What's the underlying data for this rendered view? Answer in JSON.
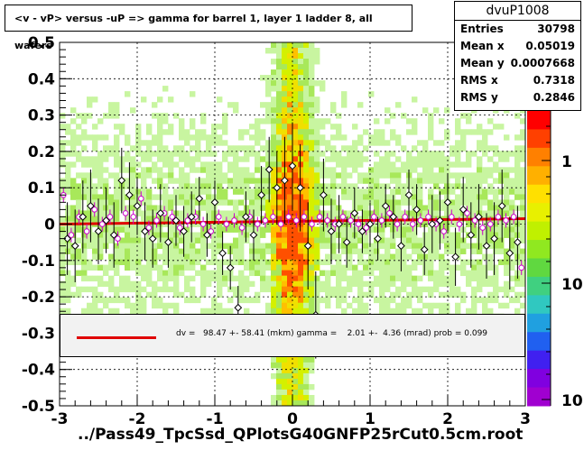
{
  "title": "<v - vP>       versus  -uP =>  gamma for barrel 1, layer 1 ladder 8, all wafers",
  "stats": {
    "name": "dvuP1008",
    "rows": [
      {
        "label": "Entries",
        "value": "30798"
      },
      {
        "label": "Mean x",
        "value": "0.05019"
      },
      {
        "label": "Mean y",
        "value": "0.0007668"
      },
      {
        "label": "RMS x",
        "value": "0.7318"
      },
      {
        "label": "RMS y",
        "value": "0.2846"
      }
    ]
  },
  "fit_text": "dv =   98.47 +- 58.41 (mkm) gamma =    2.01 +-  4.36 (mrad) prob = 0.099",
  "xlabel": "../Pass49_TpcSsd_QPlotsG40GNFP25rCut0.5cm.root",
  "colors": {
    "fit_line": "#e00000",
    "profile_black": "#000000",
    "profile_magenta": "#cc00cc"
  },
  "chart_data": {
    "type": "heatmap",
    "xlim": [
      -3,
      3
    ],
    "ylim": [
      -0.5,
      0.5
    ],
    "x_ticks": [
      "-3",
      "-2",
      "-1",
      "0",
      "1",
      "2",
      "3"
    ],
    "y_ticks": [
      "-0.5",
      "-0.4",
      "-0.3",
      "-0.2",
      "-0.1",
      "0",
      "0.1",
      "0.2",
      "0.3",
      "0.4",
      "0.5"
    ],
    "z_scale": "log",
    "z_ticks": [
      "1",
      "10",
      "10"
    ],
    "grid": true,
    "fit_line": {
      "x": [
        -3,
        3
      ],
      "y": [
        0.0,
        0.015
      ]
    },
    "profile_black": {
      "x": [
        -2.9,
        -2.8,
        -2.7,
        -2.6,
        -2.5,
        -2.4,
        -2.3,
        -2.2,
        -2.1,
        -2.0,
        -1.9,
        -1.8,
        -1.7,
        -1.6,
        -1.5,
        -1.4,
        -1.3,
        -1.2,
        -1.1,
        -1.0,
        -0.9,
        -0.8,
        -0.7,
        -0.6,
        -0.5,
        -0.4,
        -0.3,
        -0.2,
        -0.1,
        0.0,
        0.1,
        0.2,
        0.3,
        0.4,
        0.5,
        0.6,
        0.7,
        0.8,
        0.9,
        1.0,
        1.1,
        1.2,
        1.3,
        1.4,
        1.5,
        1.6,
        1.7,
        1.8,
        1.9,
        2.0,
        2.1,
        2.2,
        2.3,
        2.4,
        2.5,
        2.6,
        2.7,
        2.8,
        2.9
      ],
      "y": [
        -0.04,
        -0.06,
        0.02,
        0.05,
        -0.02,
        0.01,
        -0.03,
        0.12,
        0.08,
        0.05,
        -0.02,
        -0.04,
        0.03,
        -0.05,
        0.01,
        -0.02,
        0.02,
        0.07,
        -0.03,
        0.06,
        -0.08,
        -0.12,
        -0.23,
        0.02,
        -0.03,
        0.08,
        0.15,
        0.1,
        0.12,
        0.16,
        0.1,
        -0.06,
        -0.25,
        0.08,
        -0.02,
        0.0,
        -0.05,
        0.03,
        -0.02,
        0.0,
        -0.04,
        0.05,
        0.02,
        -0.06,
        0.08,
        0.04,
        -0.07,
        0.0,
        0.01,
        0.06,
        -0.09,
        0.04,
        -0.03,
        0.02,
        -0.06,
        -0.04,
        0.05,
        -0.08,
        -0.05
      ],
      "err": [
        0.1,
        0.1,
        0.1,
        0.1,
        0.09,
        0.09,
        0.09,
        0.09,
        0.09,
        0.08,
        0.08,
        0.08,
        0.08,
        0.07,
        0.07,
        0.07,
        0.07,
        0.06,
        0.06,
        0.06,
        0.06,
        0.06,
        0.06,
        0.07,
        0.07,
        0.08,
        0.09,
        0.1,
        0.12,
        0.12,
        0.12,
        0.12,
        0.12,
        0.1,
        0.09,
        0.08,
        0.07,
        0.07,
        0.06,
        0.06,
        0.06,
        0.06,
        0.06,
        0.07,
        0.07,
        0.07,
        0.07,
        0.08,
        0.08,
        0.08,
        0.08,
        0.09,
        0.09,
        0.09,
        0.09,
        0.1,
        0.1,
        0.1,
        0.1
      ]
    },
    "profile_magenta": {
      "x": [
        -2.95,
        -2.85,
        -2.75,
        -2.65,
        -2.55,
        -2.45,
        -2.35,
        -2.25,
        -2.15,
        -2.05,
        -1.95,
        -1.85,
        -1.75,
        -1.65,
        -1.55,
        -1.45,
        -1.35,
        -1.25,
        -1.15,
        -1.05,
        -0.95,
        -0.85,
        -0.75,
        -0.65,
        -0.55,
        -0.45,
        -0.35,
        -0.25,
        -0.15,
        -0.05,
        0.05,
        0.15,
        0.25,
        0.35,
        0.45,
        0.55,
        0.65,
        0.75,
        0.85,
        0.95,
        1.05,
        1.15,
        1.25,
        1.35,
        1.45,
        1.55,
        1.65,
        1.75,
        1.85,
        1.95,
        2.05,
        2.15,
        2.25,
        2.35,
        2.45,
        2.55,
        2.65,
        2.75,
        2.85,
        2.95
      ],
      "y": [
        0.08,
        -0.03,
        0.02,
        -0.02,
        0.04,
        0.0,
        0.02,
        -0.04,
        0.03,
        0.02,
        0.07,
        -0.01,
        0.01,
        0.03,
        0.02,
        -0.01,
        0.01,
        0.02,
        0.0,
        -0.02,
        0.02,
        0.0,
        0.01,
        -0.01,
        0.02,
        0.0,
        0.01,
        0.02,
        0.0,
        0.02,
        0.01,
        0.02,
        0.0,
        0.02,
        0.01,
        0.0,
        0.02,
        0.01,
        0.0,
        -0.01,
        0.02,
        0.01,
        0.03,
        0.0,
        0.02,
        0.0,
        0.01,
        0.02,
        0.0,
        -0.02,
        0.02,
        0.0,
        0.03,
        0.01,
        -0.01,
        0.0,
        0.02,
        0.01,
        0.02,
        -0.12
      ]
    }
  }
}
